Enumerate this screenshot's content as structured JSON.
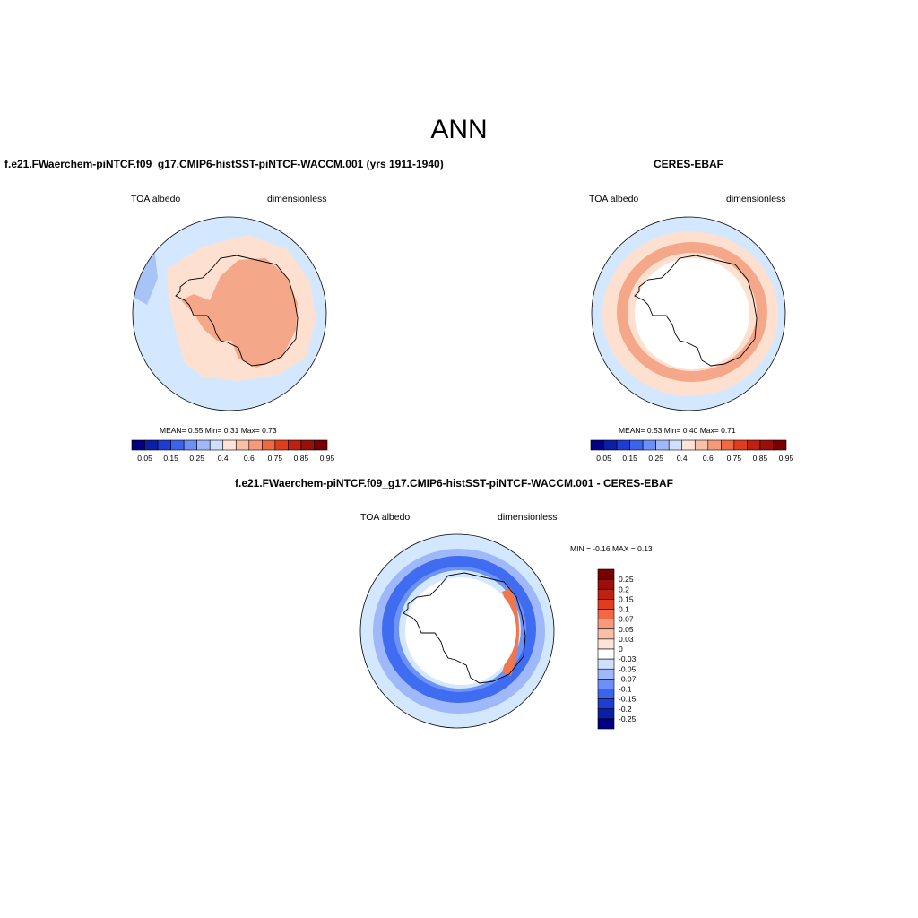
{
  "page": {
    "title": "ANN"
  },
  "colors": {
    "ocean_light_blue": "#d3e8fe",
    "light_peach": "#fde0d0",
    "salmon": "#f5a889",
    "strong_blue": "#3f6cf0",
    "mid_blue": "#6d93f7",
    "land_white": "#ffffff"
  },
  "panels": [
    {
      "title": "f.e21.FWaerchem-piNTCF.f09_g17.CMIP6-histSST-piNTCF-WACCM.001 (yrs 1911-1940)",
      "field": "TOA albedo",
      "units": "dimensionless",
      "stats": "MEAN=   0.55  Min=   0.31  Max=   0.73"
    },
    {
      "title": "CERES-EBAF",
      "field": "TOA albedo",
      "units": "dimensionless",
      "stats": "MEAN=   0.53  Min=   0.40  Max=   0.71"
    },
    {
      "title": "f.e21.FWaerchem-piNTCF.f09_g17.CMIP6-histSST-piNTCF-WACCM.001 - CERES-EBAF",
      "field": "TOA albedo",
      "units": "dimensionless",
      "stats": "MIN =  -0.16 MAX =   0.13"
    }
  ],
  "colorbar_abs": {
    "colors": [
      "#000080",
      "#0a1ea6",
      "#1e3cd2",
      "#3a64ee",
      "#6d8ff6",
      "#9fb8fa",
      "#cfdffd",
      "#fde4d6",
      "#f9c0a8",
      "#f59a7a",
      "#ee6a45",
      "#e03c1e",
      "#c02010",
      "#9a1008",
      "#780000"
    ],
    "labels": [
      "0.05",
      "0.15",
      "0.25",
      "0.4",
      "0.6",
      "0.75",
      "0.85",
      "0.95"
    ]
  },
  "colorbar_diff": {
    "colors": [
      "#780000",
      "#9a1008",
      "#c02010",
      "#e03c1e",
      "#ee6a45",
      "#f59a7a",
      "#f9c0a8",
      "#fde4d6",
      "#ffffff",
      "#cfdffd",
      "#9fb8fa",
      "#6d8ff6",
      "#3a64ee",
      "#1e3cd2",
      "#0a1ea6",
      "#000080"
    ],
    "labels": [
      "0.25",
      "0.2",
      "0.15",
      "0.1",
      "0.07",
      "0.05",
      "0.03",
      "0",
      "-0.03",
      "-0.05",
      "-0.07",
      "-0.1",
      "-0.15",
      "-0.2",
      "-0.25"
    ]
  }
}
